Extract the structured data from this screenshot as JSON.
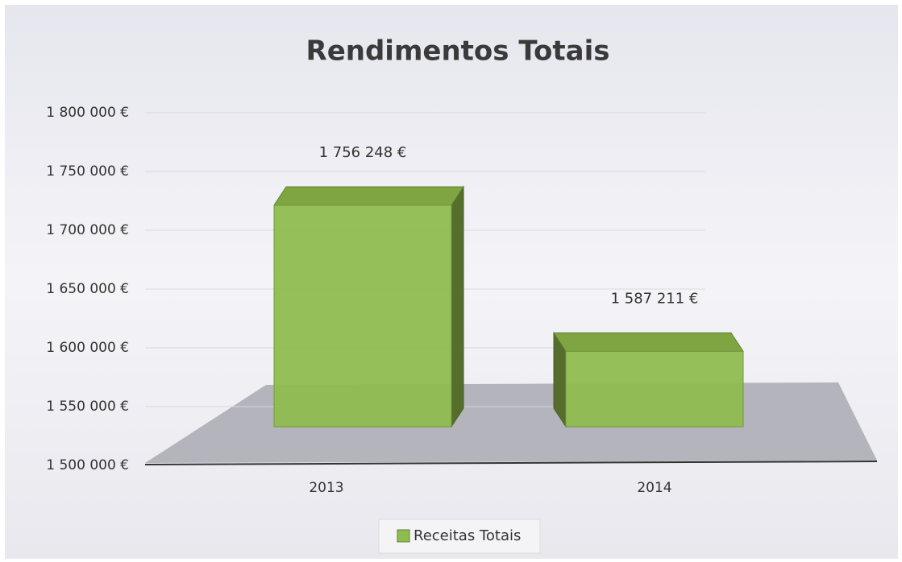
{
  "chart_data": {
    "type": "bar3d",
    "title": "Rendimentos Totais",
    "categories": [
      "2013",
      "2014"
    ],
    "series": [
      {
        "name": "Receitas Totais",
        "color": "#8fbc4f",
        "values": [
          1756248,
          1587211
        ],
        "value_labels": [
          "1 756 248 €",
          "1 587 211 €"
        ]
      }
    ],
    "ylim": [
      1500000,
      1800000
    ],
    "yticks": [
      {
        "value": 1500000,
        "label": "1 500 000 €"
      },
      {
        "value": 1550000,
        "label": "1 550 000 €"
      },
      {
        "value": 1600000,
        "label": "1 600 000 €"
      },
      {
        "value": 1650000,
        "label": "1 650 000 €"
      },
      {
        "value": 1700000,
        "label": "1 700 000 €"
      },
      {
        "value": 1750000,
        "label": "1 750 000 €"
      },
      {
        "value": 1800000,
        "label": "1 800 000 €"
      }
    ],
    "grid": true,
    "legend": "bottom"
  }
}
